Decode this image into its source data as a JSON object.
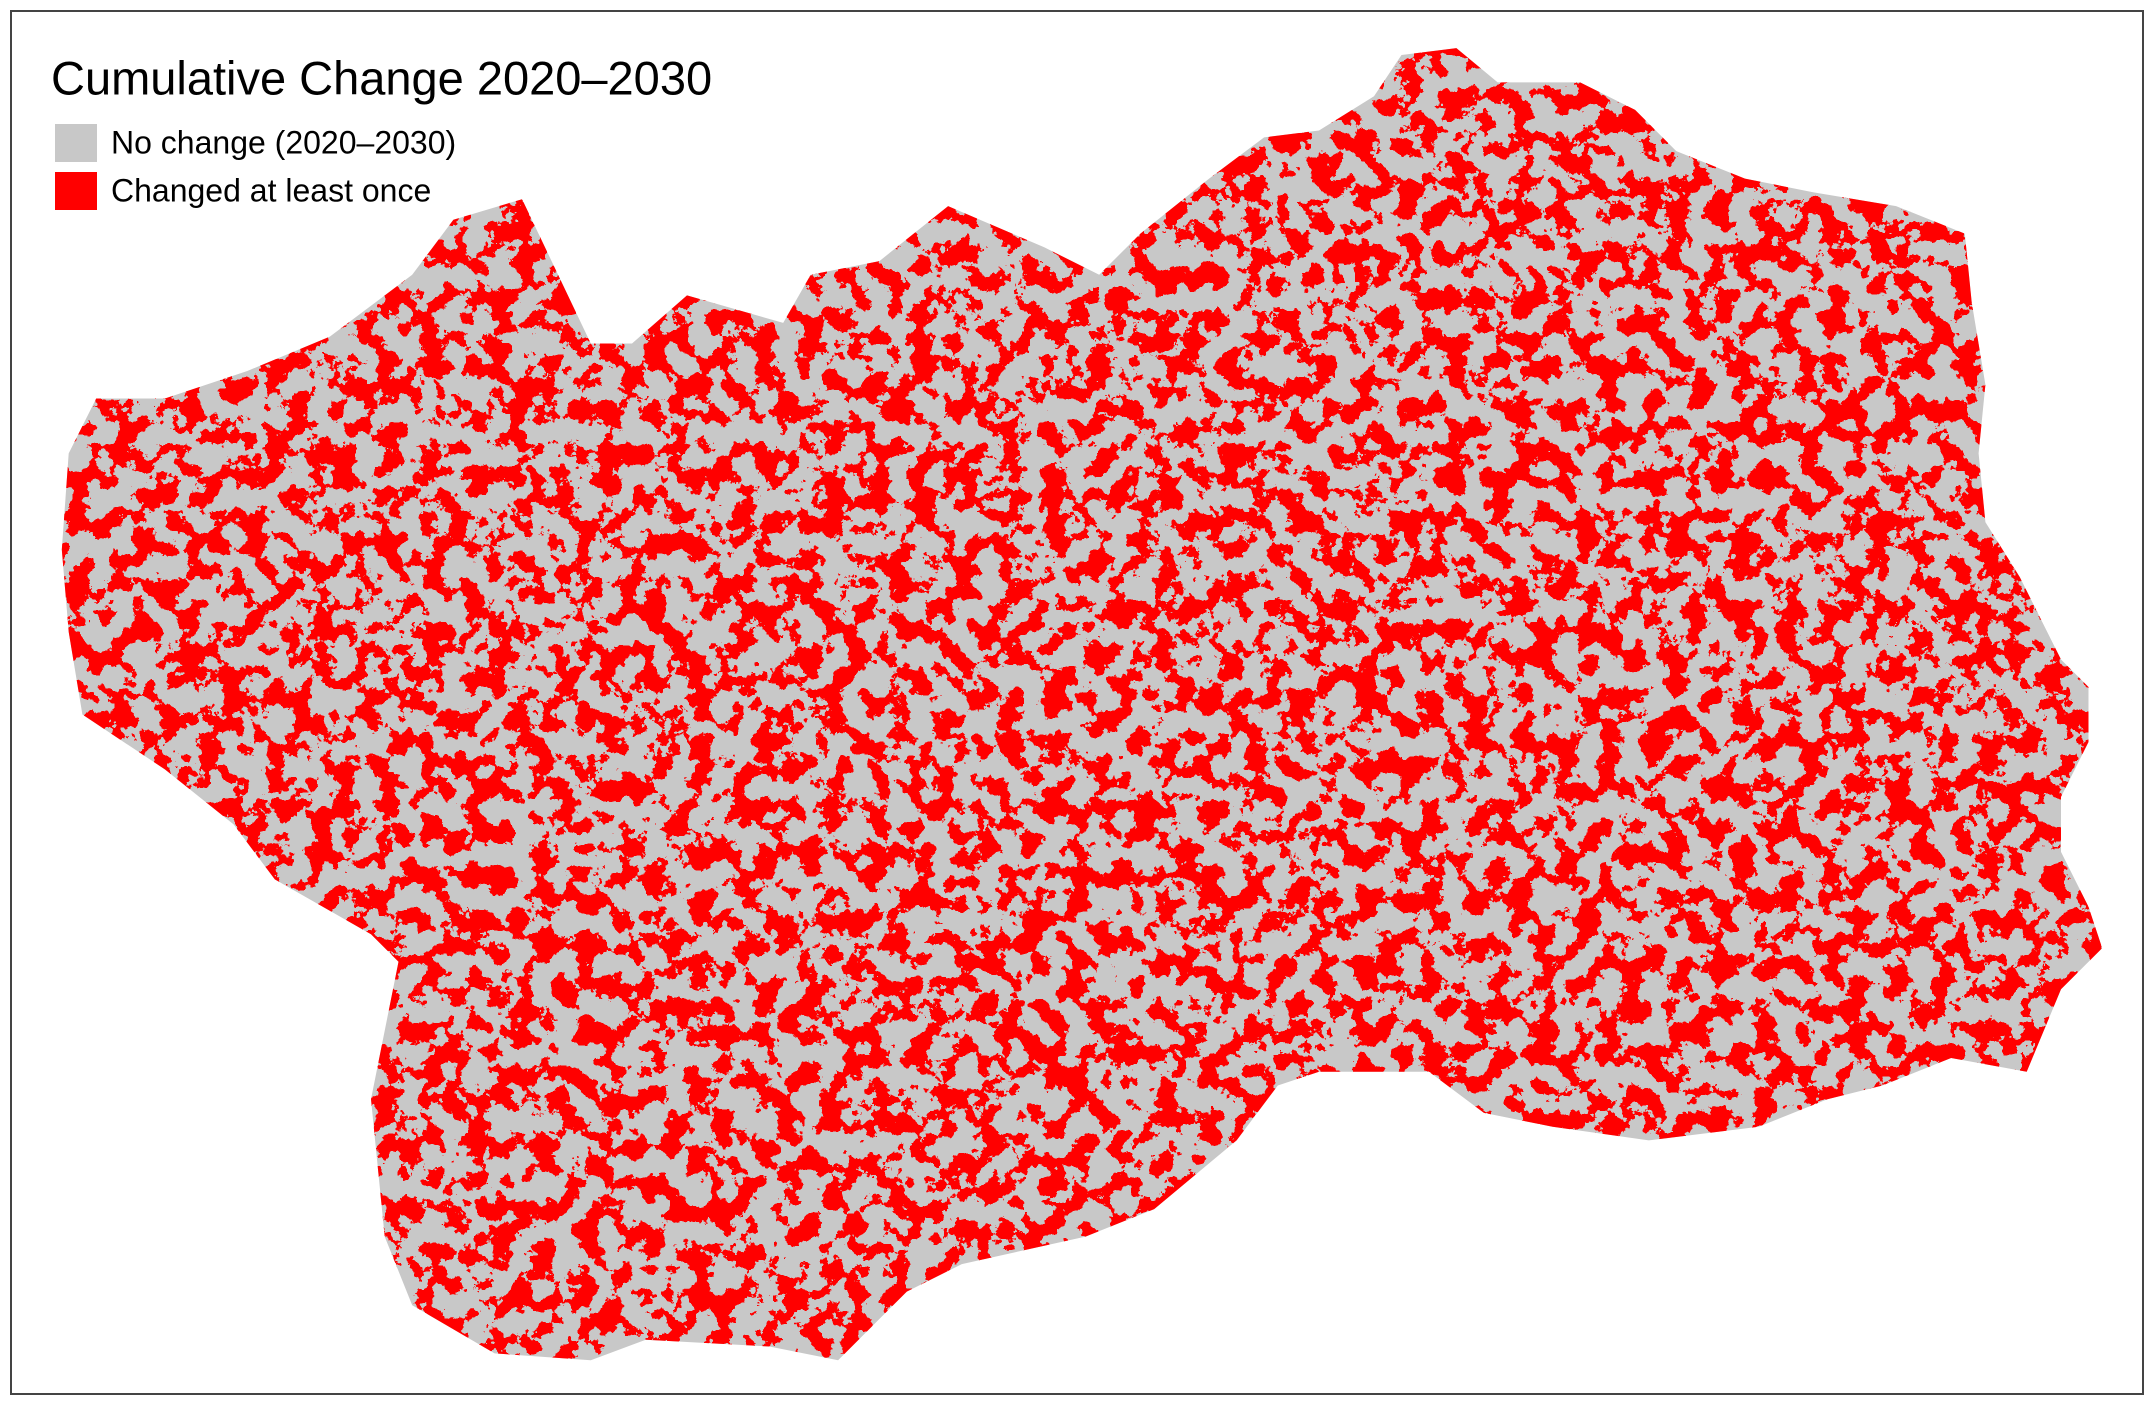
{
  "map": {
    "title": "Cumulative Change 2020–2030",
    "legend": [
      {
        "label": "No change (2020–2030)",
        "color": "#c8c8c8"
      },
      {
        "label": "Changed at least once",
        "color": "#ff0000"
      }
    ]
  }
}
